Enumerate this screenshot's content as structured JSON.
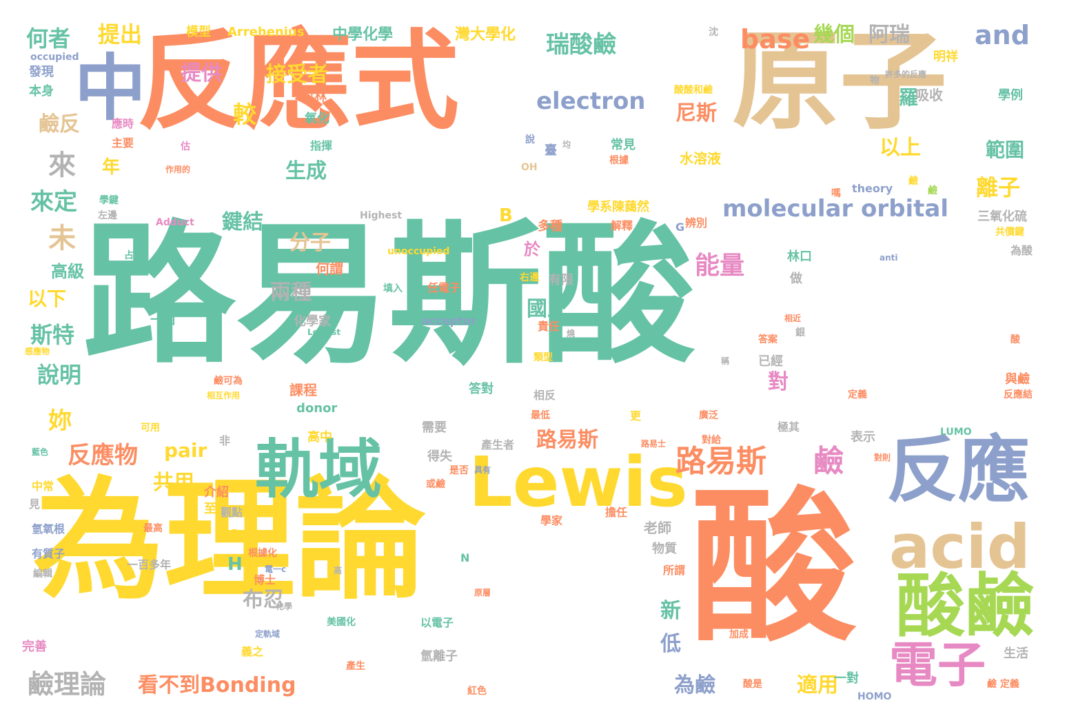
{
  "palette": {
    "green": "#66c2a5",
    "orange": "#fc8d62",
    "blue": "#8da0cb",
    "pink": "#e78ac3",
    "lime": "#a6d854",
    "yellow": "#ffd92f",
    "tan": "#e5c494",
    "gray": "#b3b3b3"
  },
  "words": [
    "路易斯酸",
    "為理論",
    "反應式",
    "原子",
    "酸",
    "軌域",
    "Lewis",
    "反應",
    "acid",
    "酸鹼",
    "電子",
    "中",
    "molecular orbital",
    "路易斯",
    "鹼",
    "瑞酸鹼",
    "electron",
    "base",
    "幾個",
    "阿瑞",
    "and",
    "鹼理論",
    "看不到Bonding",
    "為鹼",
    "適用",
    "以上",
    "範圍",
    "離子",
    "能量",
    "兩種",
    "國立",
    "分子",
    "來定",
    "來",
    "提供",
    "接受者",
    "生成",
    "較",
    "尼斯",
    "羅",
    "吸收",
    "何者",
    "提出",
    "模型",
    "Arrehenius",
    "中學化學",
    "灣大學化",
    "明祥",
    "沈",
    "occupied",
    "發現",
    "本身",
    "鹼反",
    "應時",
    "主要",
    "年",
    "科林",
    "氧化",
    "指揮",
    "常見",
    "根據",
    "水溶液",
    "三氧化硫",
    "共價鍵",
    "為酸",
    "高級",
    "以下",
    "斯特",
    "說明",
    "妳",
    "反應物",
    "pair",
    "共用",
    "路易斯",
    "對",
    "布忍",
    "新",
    "低",
    "介紹",
    "至少",
    "觀點",
    "H",
    "A",
    "B",
    "未",
    "於",
    "鍵結",
    "何謂",
    "填入",
    "任電子",
    "acceptor",
    "Lowest",
    "化學家",
    "一個",
    "責任",
    "答對",
    "donor",
    "課程",
    "高中",
    "需要",
    "得失",
    "是否",
    "產生者",
    "具有",
    "路易士",
    "對給",
    "表示",
    "極其",
    "與鹼",
    "反應結",
    "定義",
    "已經",
    "銀",
    "答案",
    "類型",
    "相近",
    "最低",
    "相反",
    "多種",
    "解釋",
    "學系陳藹然",
    "G",
    "辨別",
    "theory",
    "鹼",
    "unoccupied",
    "Highest",
    "Adduct",
    "學鍵",
    "左邊",
    "占",
    "一組",
    "右邊",
    "有限",
    "做",
    "林口",
    "一對",
    "酸是",
    "鹼 定義",
    "紅色",
    "產生",
    "美國化",
    "以電子",
    "氫離子",
    "生活",
    "加成",
    "原層",
    "高",
    "N",
    "老師",
    "物質",
    "所謂",
    "最高",
    "擔任",
    "學家",
    "博士",
    "電一c",
    "根據化",
    "一百多年",
    "有質子",
    "氫氧根",
    "編輯",
    "見",
    "中常",
    "藍色",
    "可用",
    "非",
    "完善",
    "義之",
    "定軌域",
    "燒",
    "臺",
    "均",
    "說",
    "估",
    "作用的",
    "OH",
    "學例",
    "許多的反應",
    "物",
    "酸酸和鹼",
    "相互作用",
    "鹼可為",
    "嗎",
    "anti",
    "廣泛",
    "更",
    "或鹼",
    "對則",
    "LUMO",
    "HOMO",
    "稱",
    "酸",
    "化學",
    "感應物",
    "鹼"
  ]
}
